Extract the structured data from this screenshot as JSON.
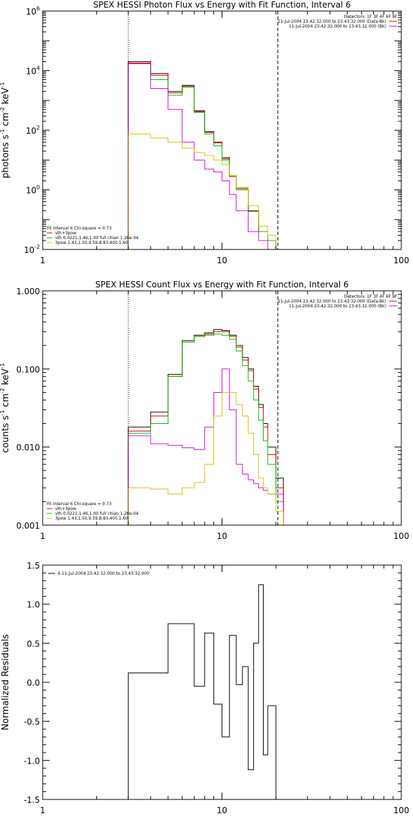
{
  "colors": {
    "black": "#000000",
    "red": "#e00000",
    "green": "#00c000",
    "magenta": "#e000e0",
    "yellow": "#e0c000"
  },
  "chart_data": [
    {
      "type": "line",
      "title": "SPEX HESSI Photon Flux vs Energy with Fit Function, Interval 6",
      "ylabel": "photons s",
      "ylabel_parts": [
        "photons s",
        "-1",
        " cm",
        "-2",
        " keV",
        "-1"
      ],
      "xscale": "log",
      "yscale": "log",
      "xlim": [
        1,
        100
      ],
      "ylim": [
        0.01,
        1000000
      ],
      "x_ticks": [
        "1",
        "10",
        "100"
      ],
      "y_ticks": [
        {
          "base": "10",
          "exp": "-2",
          "value": 0.01
        },
        {
          "base": "10",
          "exp": "0",
          "value": 1
        },
        {
          "base": "10",
          "exp": "2",
          "value": 100
        },
        {
          "base": "10",
          "exp": "4",
          "value": 10000
        },
        {
          "base": "10",
          "exp": "6",
          "value": 1000000
        }
      ],
      "vlines": [
        {
          "x": 3,
          "style": "dotted"
        },
        {
          "x": 20.5,
          "style": "dashed"
        }
      ],
      "legend_top_right": [
        {
          "text": "Detectors: 1F 3F 4F 6F 9F",
          "color": "black"
        },
        {
          "text": "11-Jul-2004 23:42:32.000 to 23:43:32.000 (Data-Bk)",
          "color": "red"
        },
        {
          "text": "11-Jul-2004 23:42:32.000 to 23:43:32.000 (Bk)",
          "color": "magenta"
        }
      ],
      "legend_bottom_left": [
        {
          "text": "Fit Interval 6   Chi-square = 0.73",
          "color": "black"
        },
        {
          "text": "vth+3pow",
          "color": "red"
        },
        {
          "text": "vth 0.0221,1.46,1.00  full chian 1.26e-04",
          "color": "green"
        },
        {
          "text": "3pow 1.43,1.50,9.59,8.83,400,1.60",
          "color": "yellow"
        }
      ],
      "bin_edges": [
        3,
        4,
        5,
        6,
        7,
        8,
        9,
        10,
        11,
        12,
        14,
        16,
        18,
        20,
        22
      ],
      "series": [
        {
          "color": "black",
          "values": [
            20000,
            8000,
            2000,
            3200,
            450,
            90,
            40,
            12,
            3,
            1.2,
            0.2,
            0.04,
            0.02,
            0.01
          ]
        },
        {
          "color": "red",
          "values": [
            18000,
            7000,
            1800,
            3000,
            420,
            85,
            38,
            11,
            2.8,
            1.1,
            0.19,
            0.04,
            0.02,
            0.01
          ]
        },
        {
          "color": "green",
          "values": [
            17000,
            5000,
            1500,
            2800,
            400,
            75,
            30,
            10,
            3,
            1,
            0.2,
            0.04,
            0.02,
            0.005
          ]
        },
        {
          "color": "magenta",
          "values": [
            17000,
            2500,
            500,
            40,
            10,
            5,
            4,
            2,
            0.7,
            0.2,
            0.04,
            0.02,
            0.01,
            0.005
          ]
        },
        {
          "color": "yellow",
          "values": [
            75,
            55,
            40,
            25,
            18,
            14,
            10,
            7,
            3,
            1.2,
            0.3,
            0.06,
            0.03,
            0.01
          ]
        }
      ]
    },
    {
      "type": "line",
      "title": "SPEX HESSI Count Flux vs Energy with Fit Function, Interval 6",
      "ylabel": "counts s",
      "ylabel_parts": [
        "counts s",
        "-1",
        " cm",
        "-2",
        " keV",
        "-1"
      ],
      "xscale": "log",
      "yscale": "log",
      "xlim": [
        1,
        100
      ],
      "ylim": [
        0.001,
        1.0
      ],
      "x_ticks": [
        "1",
        "10",
        "100"
      ],
      "y_ticks": [
        {
          "label": "0.001",
          "value": 0.001
        },
        {
          "label": "0.010",
          "value": 0.01
        },
        {
          "label": "0.100",
          "value": 0.1
        },
        {
          "label": "1.000",
          "value": 1.0
        }
      ],
      "vlines": [
        {
          "x": 3,
          "style": "dotted"
        },
        {
          "x": 20.5,
          "style": "dashed"
        }
      ],
      "legend_top_right": [
        {
          "text": "Detectors: 1F 3F 4F 6F 9F",
          "color": "black"
        },
        {
          "text": "11-Jul-2004 23:42:32.000 to 23:43:32.000 (Data-Bk)",
          "color": "red"
        },
        {
          "text": "11-Jul-2004 23:42:32.000 to 23:43:32.000 (Bk)",
          "color": "magenta"
        }
      ],
      "legend_bottom_left": [
        {
          "text": "Fit Interval 6   Chi-square = 0.73",
          "color": "black"
        },
        {
          "text": "vth+3pow",
          "color": "red"
        },
        {
          "text": "vth 0.0221,1.46,1.00  full chian 1.26e-04",
          "color": "green"
        },
        {
          "text": "3pow 1.43,1.50,9.59,8.83,400,1.60",
          "color": "yellow"
        }
      ],
      "bin_edges": [
        3,
        4,
        5,
        6,
        7,
        8,
        9,
        10,
        11,
        12,
        13,
        14,
        15,
        16,
        17,
        18,
        20,
        22
      ],
      "series": [
        {
          "color": "black",
          "values": [
            0.018,
            0.028,
            0.085,
            0.23,
            0.27,
            0.29,
            0.32,
            0.31,
            0.27,
            0.2,
            0.14,
            0.1,
            0.06,
            0.035,
            0.02,
            0.01,
            0.004
          ]
        },
        {
          "color": "red",
          "values": [
            0.016,
            0.025,
            0.08,
            0.22,
            0.26,
            0.28,
            0.3,
            0.3,
            0.26,
            0.19,
            0.13,
            0.095,
            0.055,
            0.032,
            0.018,
            0.008,
            0.003
          ]
        },
        {
          "color": "green",
          "values": [
            0.015,
            0.02,
            0.08,
            0.22,
            0.26,
            0.27,
            0.28,
            0.27,
            0.24,
            0.17,
            0.11,
            0.07,
            0.04,
            0.022,
            0.012,
            0.006,
            0.002
          ]
        },
        {
          "color": "magenta",
          "values": [
            0.014,
            0.011,
            0.0105,
            0.0098,
            0.0093,
            0.018,
            0.05,
            0.1,
            0.03,
            0.006,
            0.0045,
            0.0038,
            0.0034,
            0.003,
            0.0028,
            0.0025,
            0.0025
          ]
        },
        {
          "color": "yellow",
          "values": [
            0.003,
            0.0029,
            0.0025,
            0.003,
            0.0035,
            0.006,
            0.025,
            0.05,
            0.05,
            0.035,
            0.025,
            0.015,
            0.008,
            0.004,
            0.003,
            0.0025,
            0.0015
          ]
        }
      ]
    },
    {
      "type": "line",
      "title": "",
      "ylabel": "Normalized Residuals",
      "xscale": "log",
      "yscale": "linear",
      "xlim": [
        1,
        100
      ],
      "ylim": [
        -1.5,
        1.5
      ],
      "x_ticks": [
        "1",
        "10",
        "100"
      ],
      "y_ticks": [
        {
          "label": "1.5",
          "value": 1.5
        },
        {
          "label": "1.0",
          "value": 1.0
        },
        {
          "label": "0.5",
          "value": 0.5
        },
        {
          "label": "0.0",
          "value": 0.0
        },
        {
          "label": "-0.5",
          "value": -0.5
        },
        {
          "label": "-1.0",
          "value": -1.0
        },
        {
          "label": "-1.5",
          "value": -1.5
        }
      ],
      "legend_top_left": [
        {
          "text": "6  11-Jul-2004 23:42:32.000 to 23:43:32.000",
          "color": "black"
        }
      ],
      "bin_edges": [
        3,
        4,
        5,
        6,
        7,
        8,
        9,
        10,
        11,
        12,
        13,
        14,
        15,
        16,
        17,
        18,
        20
      ],
      "series": [
        {
          "color": "black",
          "values": [
            0.12,
            0.12,
            0.75,
            0.75,
            -0.05,
            0.63,
            -0.28,
            -0.7,
            0.6,
            -0.03,
            0.2,
            -1.12,
            0.5,
            1.25,
            -0.93,
            -0.3
          ]
        }
      ]
    }
  ]
}
